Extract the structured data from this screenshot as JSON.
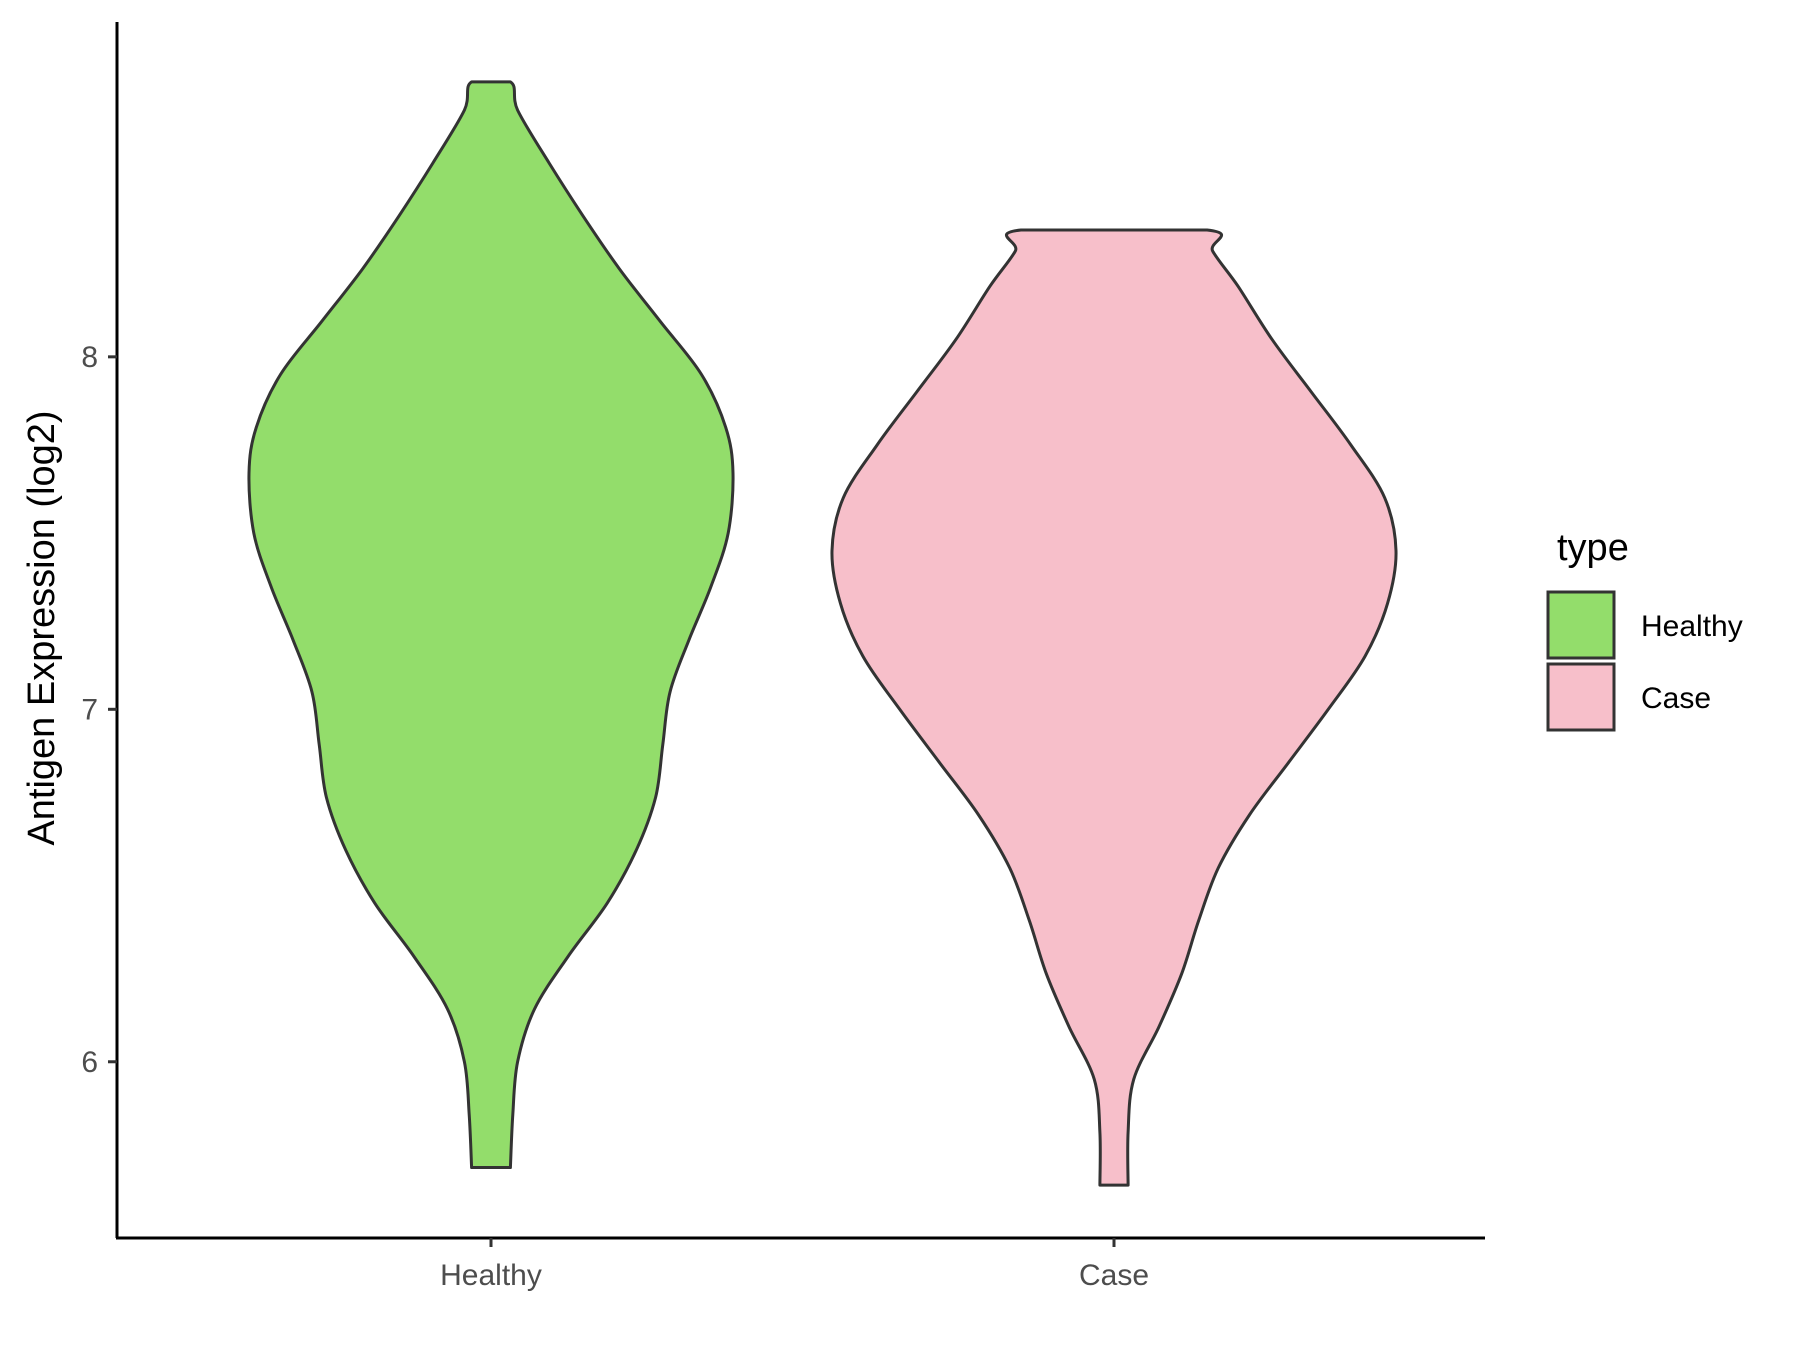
{
  "chart_data": {
    "type": "violin",
    "title": "",
    "xlabel": "",
    "ylabel": "Antigen Expression (log2)",
    "categories": [
      "Healthy",
      "Case"
    ],
    "ylim": [
      5.5,
      8.95
    ],
    "yticks": [
      6,
      7,
      8
    ],
    "grid": false,
    "legend": {
      "title": "type",
      "position": "right",
      "entries": [
        {
          "label": "Healthy",
          "color": "#93dd6b"
        },
        {
          "label": "Case",
          "color": "#f7bfca"
        }
      ]
    },
    "series": [
      {
        "name": "Healthy",
        "color": "#93dd6b",
        "min": 5.7,
        "max": 8.78,
        "density_profile": [
          {
            "y": 5.7,
            "w": 0.08
          },
          {
            "y": 5.85,
            "w": 0.09
          },
          {
            "y": 6.0,
            "w": 0.11
          },
          {
            "y": 6.15,
            "w": 0.18
          },
          {
            "y": 6.3,
            "w": 0.32
          },
          {
            "y": 6.45,
            "w": 0.48
          },
          {
            "y": 6.6,
            "w": 0.6
          },
          {
            "y": 6.75,
            "w": 0.68
          },
          {
            "y": 6.9,
            "w": 0.71
          },
          {
            "y": 7.05,
            "w": 0.74
          },
          {
            "y": 7.2,
            "w": 0.82
          },
          {
            "y": 7.35,
            "w": 0.91
          },
          {
            "y": 7.5,
            "w": 0.98
          },
          {
            "y": 7.67,
            "w": 1.0
          },
          {
            "y": 7.8,
            "w": 0.97
          },
          {
            "y": 7.95,
            "w": 0.87
          },
          {
            "y": 8.1,
            "w": 0.7
          },
          {
            "y": 8.25,
            "w": 0.53
          },
          {
            "y": 8.4,
            "w": 0.38
          },
          {
            "y": 8.55,
            "w": 0.24
          },
          {
            "y": 8.7,
            "w": 0.11
          },
          {
            "y": 8.78,
            "w": 0.08
          }
        ]
      },
      {
        "name": "Case",
        "color": "#f7bfca",
        "min": 5.65,
        "max": 8.36,
        "density_profile": [
          {
            "y": 5.65,
            "w": 0.05
          },
          {
            "y": 5.8,
            "w": 0.05
          },
          {
            "y": 5.95,
            "w": 0.07
          },
          {
            "y": 6.1,
            "w": 0.16
          },
          {
            "y": 6.25,
            "w": 0.24
          },
          {
            "y": 6.4,
            "w": 0.3
          },
          {
            "y": 6.55,
            "w": 0.37
          },
          {
            "y": 6.7,
            "w": 0.48
          },
          {
            "y": 6.85,
            "w": 0.62
          },
          {
            "y": 7.0,
            "w": 0.76
          },
          {
            "y": 7.15,
            "w": 0.89
          },
          {
            "y": 7.3,
            "w": 0.97
          },
          {
            "y": 7.45,
            "w": 1.0
          },
          {
            "y": 7.6,
            "w": 0.96
          },
          {
            "y": 7.75,
            "w": 0.84
          },
          {
            "y": 7.9,
            "w": 0.7
          },
          {
            "y": 8.05,
            "w": 0.56
          },
          {
            "y": 8.2,
            "w": 0.44
          },
          {
            "y": 8.3,
            "w": 0.35
          },
          {
            "y": 8.36,
            "w": 0.33
          }
        ]
      }
    ]
  }
}
